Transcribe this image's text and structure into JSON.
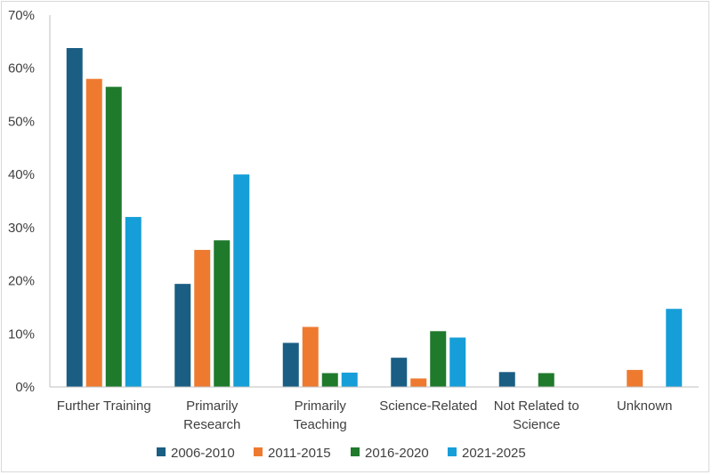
{
  "chart_data": {
    "type": "bar",
    "title": "",
    "xlabel": "",
    "ylabel": "",
    "ylim": [
      0,
      70
    ],
    "y_ticks": [
      0,
      10,
      20,
      30,
      40,
      50,
      60,
      70
    ],
    "y_tick_format": "percent",
    "grid": false,
    "legend_position": "bottom",
    "categories": [
      [
        "Further Training"
      ],
      [
        "Primarily",
        "Research"
      ],
      [
        "Primarily",
        "Teaching"
      ],
      [
        "Science-Related"
      ],
      [
        "Not Related to",
        "Science"
      ],
      [
        "Unknown"
      ]
    ],
    "series": [
      {
        "name": "2006-2010",
        "color": "#1a5e84",
        "values": [
          63.8,
          19.4,
          8.3,
          5.5,
          2.8,
          0
        ]
      },
      {
        "name": "2011-2015",
        "color": "#ee7a30",
        "values": [
          58.0,
          25.8,
          11.3,
          1.6,
          0,
          3.2
        ]
      },
      {
        "name": "2016-2020",
        "color": "#1f7a2c",
        "values": [
          56.5,
          27.6,
          2.6,
          10.5,
          2.6,
          0
        ]
      },
      {
        "name": "2021-2025",
        "color": "#169ed8",
        "values": [
          32.0,
          40.0,
          2.7,
          9.3,
          0,
          14.7
        ]
      }
    ]
  }
}
